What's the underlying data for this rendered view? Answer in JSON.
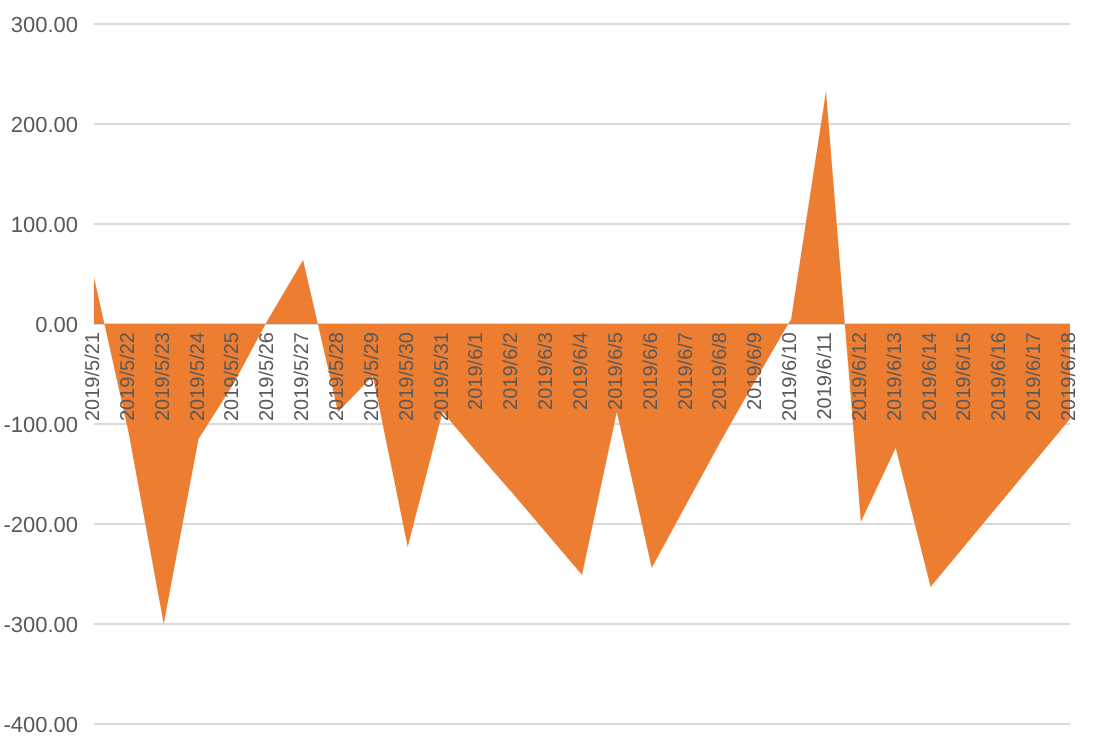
{
  "chart_data": {
    "type": "area",
    "categories": [
      "2019/5/21",
      "2019/5/22",
      "2019/5/23",
      "2019/5/24",
      "2019/5/25",
      "2019/5/26",
      "2019/5/27",
      "2019/5/28",
      "2019/5/29",
      "2019/5/30",
      "2019/5/31",
      "2019/6/1",
      "2019/6/2",
      "2019/6/3",
      "2019/6/4",
      "2019/6/5",
      "2019/6/6",
      "2019/6/7",
      "2019/6/8",
      "2019/6/9",
      "2019/6/10",
      "2019/6/11",
      "2019/6/12",
      "2019/6/13",
      "2019/6/14",
      "2019/6/15",
      "2019/6/16",
      "2019/6/17",
      "2019/6/18"
    ],
    "series": [
      {
        "color": "#ed7d31",
        "values": [
          47,
          -110,
          -300,
          -115,
          -60,
          5,
          64,
          -88,
          -52,
          -223,
          -88,
          -129,
          -169,
          -210,
          -251,
          -88,
          -244,
          -180,
          -116,
          -55,
          5,
          233,
          -198,
          -124,
          -263,
          -221,
          -179,
          -137,
          -95
        ]
      }
    ],
    "ylim": [
      -400,
      300
    ],
    "yticks": [
      {
        "value": -400,
        "label": "-400.00"
      },
      {
        "value": -300,
        "label": "-300.00"
      },
      {
        "value": -200,
        "label": "-200.00"
      },
      {
        "value": -100,
        "label": "-100.00"
      },
      {
        "value": 0,
        "label": "0.00"
      },
      {
        "value": 100,
        "label": "100.00"
      },
      {
        "value": 200,
        "label": "200.00"
      },
      {
        "value": 300,
        "label": "300.00"
      }
    ],
    "grid": "y"
  }
}
